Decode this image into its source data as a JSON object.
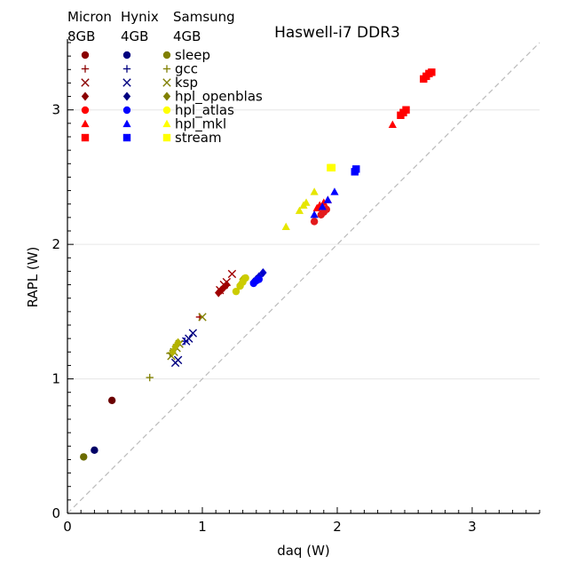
{
  "chart_data": {
    "type": "scatter",
    "title": "Haswell-i7 DDR3",
    "xlabel": "daq (W)",
    "ylabel": "RAPL (W)",
    "xlim": [
      0,
      3.5
    ],
    "ylim": [
      0,
      3.5
    ],
    "x_ticks": [
      "0",
      "1",
      "2",
      "3"
    ],
    "y_ticks": [
      "0",
      "1",
      "2",
      "3"
    ],
    "grid": "horizontal",
    "reference_line": {
      "type": "y=x",
      "style": "dashed",
      "color": "#bbbbbb"
    },
    "legend": {
      "position": "top-left",
      "columns": [
        {
          "name": "Micron",
          "size": "8GB",
          "color": "#8b0000",
          "color_stream": "#ff0000"
        },
        {
          "name": "Hynix",
          "size": "4GB",
          "color": "#000080",
          "color_stream": "#0000ff"
        },
        {
          "name": "Samsung",
          "size": "4GB",
          "color": "#808000",
          "color_stream": "#ffff00"
        }
      ],
      "rows": [
        {
          "label": "sleep",
          "marker": "circle"
        },
        {
          "label": "gcc",
          "marker": "plus"
        },
        {
          "label": "ksp",
          "marker": "cross"
        },
        {
          "label": "hpl_openblas",
          "marker": "diamond"
        },
        {
          "label": "hpl_atlas",
          "marker": "circle"
        },
        {
          "label": "hpl_mkl",
          "marker": "triangle"
        },
        {
          "label": "stream",
          "marker": "square"
        }
      ]
    },
    "series": [
      {
        "memory": "Micron",
        "benchmark": "sleep",
        "marker": "circle",
        "color": "#6b0000",
        "points": [
          [
            0.33,
            0.84
          ]
        ]
      },
      {
        "memory": "Micron",
        "benchmark": "gcc",
        "marker": "plus",
        "color": "#a00000",
        "points": [
          [
            0.98,
            1.46
          ]
        ]
      },
      {
        "memory": "Micron",
        "benchmark": "ksp",
        "marker": "cross",
        "color": "#a00000",
        "points": [
          [
            1.13,
            1.66
          ],
          [
            1.16,
            1.7
          ],
          [
            1.18,
            1.72
          ],
          [
            1.22,
            1.78
          ]
        ]
      },
      {
        "memory": "Micron",
        "benchmark": "hpl_openblas",
        "marker": "diamond",
        "color": "#a00000",
        "points": [
          [
            1.12,
            1.64
          ],
          [
            1.14,
            1.66
          ],
          [
            1.16,
            1.68
          ],
          [
            1.18,
            1.7
          ]
        ]
      },
      {
        "memory": "Micron",
        "benchmark": "hpl_atlas",
        "marker": "circle",
        "color": "#e31a1c",
        "points": [
          [
            1.83,
            2.17
          ],
          [
            1.88,
            2.22
          ],
          [
            1.9,
            2.24
          ],
          [
            1.92,
            2.26
          ]
        ]
      },
      {
        "memory": "Micron",
        "benchmark": "hpl_mkl",
        "marker": "triangle",
        "color": "#ff0000",
        "points": [
          [
            2.41,
            2.89
          ],
          [
            1.85,
            2.27
          ],
          [
            1.87,
            2.29
          ],
          [
            1.9,
            2.31
          ],
          [
            1.93,
            2.33
          ]
        ]
      },
      {
        "memory": "Micron",
        "benchmark": "stream",
        "marker": "square",
        "color": "#ff0000",
        "points": [
          [
            2.47,
            2.96
          ],
          [
            2.49,
            2.98
          ],
          [
            2.51,
            3.0
          ],
          [
            2.64,
            3.23
          ],
          [
            2.66,
            3.25
          ],
          [
            2.68,
            3.27
          ],
          [
            2.7,
            3.28
          ]
        ]
      },
      {
        "memory": "Hynix",
        "benchmark": "sleep",
        "marker": "circle",
        "color": "#000066",
        "points": [
          [
            0.2,
            0.47
          ]
        ]
      },
      {
        "memory": "Hynix",
        "benchmark": "gcc",
        "marker": "plus",
        "color": "#0000cc",
        "points": [
          [
            0.87,
            1.28
          ]
        ]
      },
      {
        "memory": "Hynix",
        "benchmark": "ksp",
        "marker": "cross",
        "color": "#000080",
        "points": [
          [
            0.8,
            1.12
          ],
          [
            0.82,
            1.14
          ],
          [
            0.88,
            1.28
          ],
          [
            0.9,
            1.3
          ],
          [
            0.93,
            1.34
          ]
        ]
      },
      {
        "memory": "Hynix",
        "benchmark": "hpl_openblas",
        "marker": "diamond",
        "color": "#0000cc",
        "points": [
          [
            1.38,
            1.72
          ],
          [
            1.4,
            1.74
          ],
          [
            1.42,
            1.76
          ],
          [
            1.45,
            1.79
          ]
        ]
      },
      {
        "memory": "Hynix",
        "benchmark": "hpl_atlas",
        "marker": "circle",
        "color": "#0000ff",
        "points": [
          [
            1.38,
            1.71
          ],
          [
            1.4,
            1.73
          ],
          [
            1.42,
            1.74
          ]
        ]
      },
      {
        "memory": "Hynix",
        "benchmark": "hpl_mkl",
        "marker": "triangle",
        "color": "#0000ff",
        "points": [
          [
            1.83,
            2.22
          ],
          [
            1.89,
            2.28
          ],
          [
            1.93,
            2.33
          ],
          [
            1.98,
            2.39
          ]
        ]
      },
      {
        "memory": "Hynix",
        "benchmark": "stream",
        "marker": "square",
        "color": "#0000ff",
        "points": [
          [
            2.13,
            2.54
          ],
          [
            2.14,
            2.56
          ]
        ]
      },
      {
        "memory": "Samsung",
        "benchmark": "sleep",
        "marker": "circle",
        "color": "#6b6b00",
        "points": [
          [
            0.12,
            0.42
          ]
        ]
      },
      {
        "memory": "Samsung",
        "benchmark": "gcc",
        "marker": "plus",
        "color": "#808000",
        "points": [
          [
            0.61,
            1.01
          ],
          [
            0.76,
            1.19
          ]
        ]
      },
      {
        "memory": "Samsung",
        "benchmark": "ksp",
        "marker": "cross",
        "color": "#808000",
        "points": [
          [
            0.77,
            1.17
          ],
          [
            0.79,
            1.2
          ],
          [
            0.81,
            1.23
          ],
          [
            0.83,
            1.26
          ],
          [
            1.0,
            1.46
          ]
        ]
      },
      {
        "memory": "Samsung",
        "benchmark": "hpl_openblas",
        "marker": "diamond",
        "color": "#b3b300",
        "points": [
          [
            0.78,
            1.2
          ],
          [
            0.8,
            1.24
          ],
          [
            0.82,
            1.27
          ],
          [
            1.28,
            1.7
          ],
          [
            1.3,
            1.74
          ]
        ]
      },
      {
        "memory": "Samsung",
        "benchmark": "hpl_atlas",
        "marker": "circle",
        "color": "#cccc00",
        "points": [
          [
            1.25,
            1.65
          ],
          [
            1.28,
            1.69
          ],
          [
            1.3,
            1.72
          ],
          [
            1.32,
            1.75
          ]
        ]
      },
      {
        "memory": "Samsung",
        "benchmark": "hpl_mkl",
        "marker": "triangle",
        "color": "#e6e600",
        "points": [
          [
            1.62,
            2.13
          ],
          [
            1.72,
            2.25
          ],
          [
            1.75,
            2.29
          ],
          [
            1.77,
            2.31
          ],
          [
            1.83,
            2.39
          ]
        ]
      },
      {
        "memory": "Samsung",
        "benchmark": "stream",
        "marker": "square",
        "color": "#ffff00",
        "points": [
          [
            1.95,
            2.57
          ],
          [
            1.96,
            2.57
          ]
        ]
      }
    ]
  }
}
